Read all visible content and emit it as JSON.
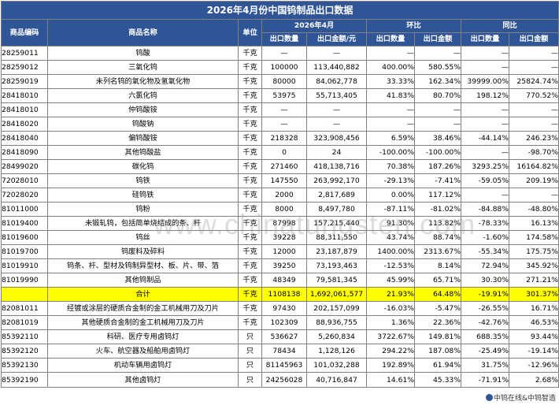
{
  "title": "2026年4月份中国钨制品出口数据",
  "headers": {
    "code": "商品编码",
    "name": "商品名称",
    "unit": "单位",
    "period": "2026年4月",
    "mom": "环比",
    "yoy": "同比",
    "qty": "出口数量",
    "amount": "出口金额/元",
    "mom_qty": "出口数量",
    "mom_amount": "出口金额",
    "yoy_qty": "出口数量",
    "yoy_amount": "出口金额"
  },
  "rows": [
    {
      "code": "28259011",
      "name": "钨酸",
      "unit": "千克",
      "qty": "—",
      "amount": "—",
      "mom_qty": "—",
      "mom_amount": "—",
      "yoy_qty": "—",
      "yoy_amount": "—"
    },
    {
      "code": "28259012",
      "name": "三氧化钨",
      "unit": "千克",
      "qty": "100000",
      "amount": "113,440,882",
      "mom_qty": "400.00%",
      "mom_amount": "580.55%",
      "yoy_qty": "—",
      "yoy_amount": "—"
    },
    {
      "code": "28259019",
      "name": "未列名钨的氧化物及氢氧化物",
      "unit": "千克",
      "qty": "80000",
      "amount": "84,062,778",
      "mom_qty": "33.33%",
      "mom_amount": "162.34%",
      "yoy_qty": "39999.00%",
      "yoy_amount": "25824.74%"
    },
    {
      "code": "28418010",
      "name": "六氯化钨",
      "unit": "千克",
      "qty": "53975",
      "amount": "55,713,405",
      "mom_qty": "41.83%",
      "mom_amount": "80.70%",
      "yoy_qty": "198.12%",
      "yoy_amount": "770.52%"
    },
    {
      "code": "28418010",
      "name": "仲钨酸铵",
      "unit": "千克",
      "qty": "—",
      "amount": "—",
      "mom_qty": "—",
      "mom_amount": "—",
      "yoy_qty": "—",
      "yoy_amount": "—"
    },
    {
      "code": "28418020",
      "name": "钨酸钠",
      "unit": "千克",
      "qty": "—",
      "amount": "—",
      "mom_qty": "—",
      "mom_amount": "—",
      "yoy_qty": "—",
      "yoy_amount": "—"
    },
    {
      "code": "28418040",
      "name": "偏钨酸铵",
      "unit": "千克",
      "qty": "218328",
      "amount": "323,908,456",
      "mom_qty": "6.59%",
      "mom_amount": "38.46%",
      "yoy_qty": "-44.14%",
      "yoy_amount": "246.23%"
    },
    {
      "code": "28418090",
      "name": "其他钨酸盐",
      "unit": "千克",
      "qty": "0",
      "amount": "24",
      "mom_qty": "-100.00%",
      "mom_amount": "-100.00%",
      "yoy_qty": "—",
      "yoy_amount": "-98.70%"
    },
    {
      "code": "28499020",
      "name": "碳化钨",
      "unit": "千克",
      "qty": "271460",
      "amount": "418,138,716",
      "mom_qty": "70.38%",
      "mom_amount": "187.26%",
      "yoy_qty": "3293.25%",
      "yoy_amount": "16164.82%"
    },
    {
      "code": "72028010",
      "name": "钨铁",
      "unit": "千克",
      "qty": "147550",
      "amount": "263,992,170",
      "mom_qty": "-29.13%",
      "mom_amount": "-7.41%",
      "yoy_qty": "-59.05%",
      "yoy_amount": "209.19%"
    },
    {
      "code": "72028020",
      "name": "硅钨铁",
      "unit": "千克",
      "qty": "2000",
      "amount": "2,817,689",
      "mom_qty": "0.00%",
      "mom_amount": "117.12%",
      "yoy_qty": "—",
      "yoy_amount": "—"
    },
    {
      "code": "81011000",
      "name": "钨粉",
      "unit": "千克",
      "qty": "8000",
      "amount": "8,497,780",
      "mom_qty": "-87.11%",
      "mom_amount": "-81.02%",
      "yoy_qty": "-84.88%",
      "yoy_amount": "-48.80%"
    },
    {
      "code": "81019400",
      "name": "未锻轧钨，包括简单烧结成的条、杆",
      "unit": "千克",
      "qty": "87998",
      "amount": "157,215,440",
      "mom_qty": "91.30%",
      "mom_amount": "113.82%",
      "yoy_qty": "-78.33%",
      "yoy_amount": "16.13%"
    },
    {
      "code": "81019600",
      "name": "钨丝",
      "unit": "千克",
      "qty": "39228",
      "amount": "88,311,550",
      "mom_qty": "43.74%",
      "mom_amount": "88.74%",
      "yoy_qty": "-1.60%",
      "yoy_amount": "174.58%"
    },
    {
      "code": "81019700",
      "name": "钨废料及碎料",
      "unit": "千克",
      "qty": "12000",
      "amount": "23,187,879",
      "mom_qty": "1400.00%",
      "mom_amount": "2313.67%",
      "yoy_qty": "-55.34%",
      "yoy_amount": "175.75%"
    },
    {
      "code": "81019910",
      "name": "钨条、杆、型材及钨制异型材、板、片、带、箔",
      "unit": "千克",
      "qty": "39250",
      "amount": "73,193,463",
      "mom_qty": "-12.53%",
      "mom_amount": "8.14%",
      "yoy_qty": "72.94%",
      "yoy_amount": "345.92%"
    },
    {
      "code": "81019990",
      "name": "其他钨制品",
      "unit": "千克",
      "qty": "48349",
      "amount": "79,581,345",
      "mom_qty": "45.99%",
      "mom_amount": "65.71%",
      "yoy_qty": "30.30%",
      "yoy_amount": "271.21%"
    },
    {
      "code": "",
      "name": "合计",
      "unit": "千克",
      "qty": "1108138",
      "amount": "1,692,061,577",
      "mom_qty": "21.93%",
      "mom_amount": "64.48%",
      "yoy_qty": "-19.91%",
      "yoy_amount": "301.37%",
      "total": true
    },
    {
      "code": "82081011",
      "name": "经镀或涂层的硬质合金制的金工机械用刀及刀片",
      "unit": "千克",
      "qty": "97430",
      "amount": "202,157,099",
      "mom_qty": "-16.03%",
      "mom_amount": "-5.47%",
      "yoy_qty": "-26.55%",
      "yoy_amount": "16.71%"
    },
    {
      "code": "82081019",
      "name": "其他硬质合金制的金工机械用刀及刀片",
      "unit": "千克",
      "qty": "102309",
      "amount": "88,936,755",
      "mom_qty": "1.36%",
      "mom_amount": "22.36%",
      "yoy_qty": "-42.76%",
      "yoy_amount": "46.53%"
    },
    {
      "code": "85392110",
      "name": "科研、医疗专用卤钨灯",
      "unit": "只",
      "qty": "536627",
      "amount": "5,260,834",
      "mom_qty": "3722.67%",
      "mom_amount": "149.81%",
      "yoy_qty": "688.35%",
      "yoy_amount": "93.44%"
    },
    {
      "code": "85392120",
      "name": "火车、航空器及船舶用卤钨灯",
      "unit": "只",
      "qty": "78434",
      "amount": "1,128,126",
      "mom_qty": "294.22%",
      "mom_amount": "187.08%",
      "yoy_qty": "-25.49%",
      "yoy_amount": "-19.14%"
    },
    {
      "code": "85392130",
      "name": "机动车辆用卤钨灯",
      "unit": "只",
      "qty": "81145963",
      "amount": "101,032,288",
      "mom_qty": "192.89%",
      "mom_amount": "61.94%",
      "yoy_qty": "31.75%",
      "yoy_amount": "-12.96%"
    },
    {
      "code": "85392190",
      "name": "其他卤钨灯",
      "unit": "只",
      "qty": "24256028",
      "amount": "40,716,847",
      "mom_qty": "14.61%",
      "mom_amount": "45.33%",
      "yoy_qty": "-71.91%",
      "yoy_amount": "2.68%"
    }
  ],
  "watermark": "www.chinatungsten.com",
  "logo_text": "中钨在线&中钨智造",
  "colors": {
    "header": "#2f5597",
    "positive": "#ff0000",
    "negative": "#00a550",
    "total_row": "#ffff00"
  }
}
